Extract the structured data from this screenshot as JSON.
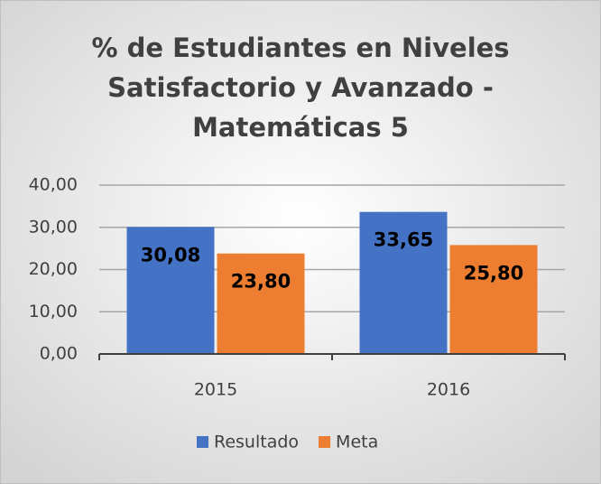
{
  "chart_data": {
    "type": "bar",
    "title": [
      "% de Estudiantes en Niveles",
      "Satisfactorio y Avanzado -",
      "Matemáticas 5"
    ],
    "categories": [
      "2015",
      "2016"
    ],
    "series": [
      {
        "name": "Resultado",
        "color": "#4472c4",
        "values": [
          30.08,
          33.65
        ],
        "value_labels": [
          "30,08",
          "33,65"
        ]
      },
      {
        "name": "Meta",
        "color": "#ed7d31",
        "values": [
          23.8,
          25.8
        ],
        "value_labels": [
          "23,80",
          "25,80"
        ]
      }
    ],
    "ylim": [
      0,
      40
    ],
    "yticks": [
      {
        "value": 0,
        "label": "0,00"
      },
      {
        "value": 10,
        "label": "10,00"
      },
      {
        "value": 20,
        "label": "20,00"
      },
      {
        "value": 30,
        "label": "30,00"
      },
      {
        "value": 40,
        "label": "40,00"
      }
    ],
    "grid": true,
    "legend": "bottom"
  }
}
